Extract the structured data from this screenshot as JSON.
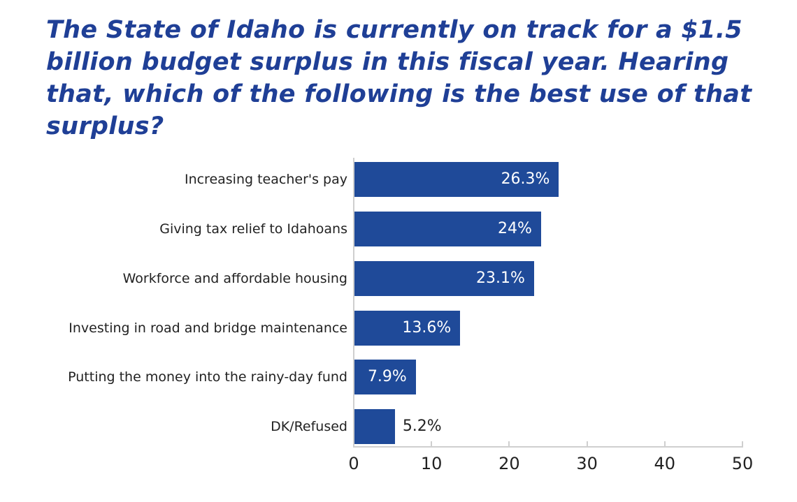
{
  "title": "The State of Idaho is currently on track for a $1.5 billion budget surplus in this fiscal year. Hearing that, which of the following is the best use of that surplus?",
  "chart_data": {
    "type": "bar",
    "orientation": "horizontal",
    "title": "The State of Idaho is currently on track for a $1.5 billion budget surplus in this fiscal year. Hearing that, which of the following is the best use of that surplus?",
    "categories": [
      "Increasing teacher's pay",
      "Giving tax relief to Idahoans",
      "Workforce and affordable housing",
      "Investing in road and bridge maintenance",
      "Putting the money into the rainy-day fund",
      "DK/Refused"
    ],
    "values": [
      26.3,
      24,
      23.1,
      13.6,
      7.9,
      5.2
    ],
    "value_labels": [
      "26.3%",
      "24%",
      "23.1%",
      "13.6%",
      "7.9%",
      "5.2%"
    ],
    "xlabel": "",
    "ylabel": "",
    "xlim": [
      0,
      50
    ],
    "xticks": [
      "0",
      "10",
      "20",
      "30",
      "40",
      "50"
    ],
    "grid": false,
    "legend": null,
    "bar_color": "#1f4a99"
  }
}
